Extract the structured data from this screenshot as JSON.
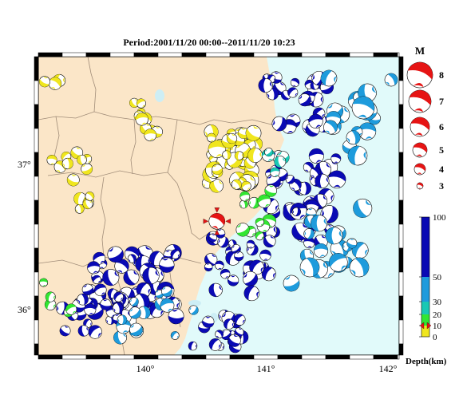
{
  "title": "Period:2001/11/20 00:00--2011/11/20 10:23",
  "axes": {
    "lat_ticks": [
      {
        "value": 37,
        "label": "37°"
      },
      {
        "value": 36,
        "label": "36°"
      }
    ],
    "lon_ticks": [
      {
        "value": 140,
        "label": "140°"
      },
      {
        "value": 141,
        "label": "141°"
      },
      {
        "value": 142,
        "label": "142°"
      }
    ],
    "lon_range": [
      139.05,
      142.1
    ],
    "lat_range": [
      35.7,
      37.93
    ]
  },
  "magnitude_legend": {
    "title": "M",
    "items": [
      "8",
      "7",
      "6",
      "5",
      "4",
      "3"
    ]
  },
  "depth_legend": {
    "title": "Depth(km)",
    "ticks": [
      "100",
      "50",
      "30",
      "20",
      "10",
      "0"
    ],
    "colors": {
      "deep": "#0a0ab4",
      "mid": "#1e9bdc",
      "shallow_mid": "#19c8b4",
      "shallow": "#32e632",
      "surface": "#f0e61e"
    }
  },
  "colors": {
    "land": "#fbe6c8",
    "sea": "#e1fafa",
    "lake": "#cdeef5",
    "border": "#a08c78",
    "mainshock": "#e61414"
  },
  "mainshock": {
    "lon": 140.56,
    "lat": 36.7,
    "label": "mainshock"
  }
}
